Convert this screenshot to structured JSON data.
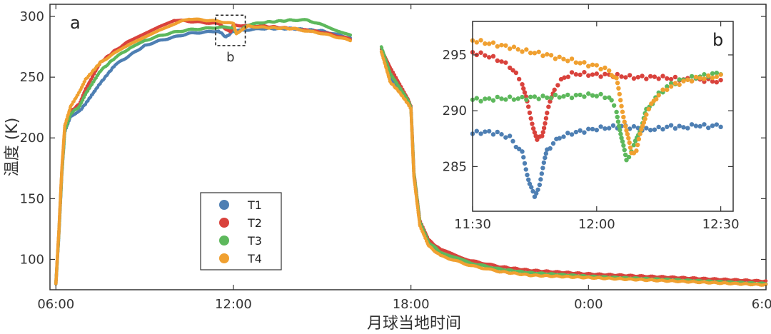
{
  "chart_data": [
    {
      "panel": "a",
      "type": "scatter",
      "title": "",
      "xlabel": "月球当地时间",
      "ylabel": "温度 (K)",
      "xlim": [
        5.8,
        30.0
      ],
      "ylim": [
        75,
        310
      ],
      "xticks": [
        {
          "value": 6,
          "label": "06:00"
        },
        {
          "value": 12,
          "label": "12:00"
        },
        {
          "value": 18,
          "label": "18:00"
        },
        {
          "value": 24,
          "label": "0:00"
        },
        {
          "value": 30,
          "label": "6:00"
        }
      ],
      "yticks": [
        100,
        150,
        200,
        250,
        300
      ],
      "grid": false,
      "legend": {
        "placement": "lower-center-left",
        "entries": [
          "T1",
          "T2",
          "T3",
          "T4"
        ]
      },
      "inset_box_label": "b",
      "inset_box": {
        "x": [
          11.4,
          12.4
        ],
        "y": [
          276,
          301
        ]
      },
      "series": [
        {
          "name": "T1",
          "color": "#4e7fb3",
          "x": [
            6.0,
            6.1,
            6.2,
            6.3,
            6.5,
            6.8,
            7.0,
            7.5,
            8.0,
            8.5,
            9.0,
            9.5,
            10.0,
            10.5,
            11.0,
            11.5,
            11.75,
            12.0,
            12.5,
            13.0,
            14.0,
            15.0,
            16.0,
            17.0,
            17.3,
            17.6,
            17.9,
            18.0,
            18.1,
            18.3,
            18.6,
            19.0,
            20.0,
            21.0,
            22.0,
            24.0,
            26.0,
            28.0,
            30.0
          ],
          "y": [
            80,
            120,
            170,
            205,
            218,
            222,
            228,
            245,
            260,
            268,
            276,
            280,
            283,
            286,
            287,
            288,
            283,
            288,
            289,
            290,
            290,
            288,
            282,
            271,
            249,
            240,
            230,
            225,
            170,
            130,
            113,
            105,
            97,
            92,
            89,
            86,
            84,
            82,
            80
          ]
        },
        {
          "name": "T2",
          "color": "#d9423c",
          "x": [
            6.0,
            6.1,
            6.2,
            6.3,
            6.5,
            6.8,
            7.0,
            7.5,
            8.0,
            8.5,
            9.0,
            9.5,
            10.0,
            10.5,
            11.0,
            11.5,
            11.9,
            12.0,
            12.5,
            13.0,
            14.0,
            15.0,
            16.0,
            17.0,
            17.3,
            17.6,
            17.9,
            18.0,
            18.1,
            18.3,
            18.6,
            19.0,
            20.0,
            21.0,
            22.0,
            24.0,
            26.0,
            28.0,
            30.0
          ],
          "y": [
            80,
            122,
            172,
            208,
            222,
            228,
            240,
            262,
            272,
            280,
            286,
            292,
            297,
            296,
            295,
            294,
            287,
            293,
            292,
            292,
            290,
            287,
            281,
            273,
            258,
            245,
            232,
            226,
            172,
            132,
            116,
            108,
            99,
            94,
            91,
            88,
            86,
            84,
            82
          ]
        },
        {
          "name": "T3",
          "color": "#5db85c",
          "x": [
            6.0,
            6.1,
            6.2,
            6.3,
            6.5,
            6.8,
            7.0,
            7.5,
            8.0,
            8.5,
            9.0,
            9.5,
            10.0,
            10.5,
            11.0,
            11.5,
            12.0,
            12.1,
            12.5,
            13.0,
            14.0,
            14.5,
            15.0,
            16.0,
            17.0,
            17.3,
            17.6,
            17.9,
            18.0,
            18.1,
            18.3,
            18.6,
            19.0,
            20.0,
            21.0,
            22.0,
            24.0,
            26.0,
            28.0,
            30.0
          ],
          "y": [
            80,
            121,
            171,
            206,
            220,
            226,
            236,
            255,
            266,
            274,
            280,
            284,
            287,
            289,
            290,
            291,
            291,
            286,
            293,
            295,
            297,
            297,
            293,
            284,
            275,
            253,
            242,
            231,
            225,
            171,
            131,
            114,
            106,
            97,
            92,
            89,
            86,
            84,
            82,
            80
          ]
        },
        {
          "name": "T4",
          "color": "#f0a030",
          "x": [
            6.0,
            6.1,
            6.2,
            6.3,
            6.5,
            6.8,
            7.0,
            7.5,
            8.0,
            8.5,
            9.0,
            9.5,
            10.0,
            10.5,
            11.0,
            11.5,
            12.0,
            12.1,
            12.5,
            13.0,
            14.0,
            15.0,
            16.0,
            17.0,
            17.3,
            17.6,
            17.9,
            18.0,
            18.1,
            18.3,
            18.6,
            19.0,
            20.0,
            21.0,
            22.0,
            24.0,
            26.0,
            28.0,
            30.0
          ],
          "y": [
            80,
            123,
            174,
            210,
            226,
            238,
            248,
            262,
            270,
            277,
            283,
            289,
            294,
            298,
            297,
            296,
            294,
            286,
            292,
            291,
            290,
            286,
            280,
            271,
            246,
            238,
            228,
            224,
            168,
            128,
            111,
            103,
            95,
            90,
            87,
            85,
            83,
            81,
            79
          ]
        }
      ]
    },
    {
      "panel": "b",
      "type": "scatter",
      "title": "",
      "xlabel": "",
      "ylabel": "",
      "xlim": [
        11.5,
        12.55
      ],
      "ylim": [
        281,
        298
      ],
      "xticks": [
        {
          "value": 11.5,
          "label": "11:30"
        },
        {
          "value": 12.0,
          "label": "12:00"
        },
        {
          "value": 12.5,
          "label": "12:30"
        }
      ],
      "yticks": [
        285,
        290,
        295
      ],
      "grid": false,
      "series": [
        {
          "name": "T1",
          "color": "#4e7fb3",
          "x": [
            11.5,
            11.55,
            11.6,
            11.65,
            11.7,
            11.73,
            11.75,
            11.77,
            11.8,
            11.85,
            11.9,
            11.95,
            12.0,
            12.05,
            12.1,
            12.15,
            12.2,
            12.25,
            12.3,
            12.35,
            12.4,
            12.45,
            12.5
          ],
          "y": [
            288.0,
            288.1,
            288.0,
            287.6,
            286.2,
            283.5,
            282.2,
            283.5,
            286.5,
            287.6,
            288.0,
            288.2,
            288.4,
            288.5,
            288.6,
            288.5,
            288.3,
            288.4,
            288.6,
            288.5,
            288.7,
            288.6,
            288.7
          ]
        },
        {
          "name": "T2",
          "color": "#d9423c",
          "x": [
            11.5,
            11.55,
            11.6,
            11.65,
            11.7,
            11.73,
            11.76,
            11.78,
            11.8,
            11.83,
            11.87,
            11.9,
            11.95,
            12.0,
            12.05,
            12.1,
            12.15,
            12.2,
            12.25,
            12.3,
            12.35,
            12.4,
            12.45,
            12.5
          ],
          "y": [
            295.2,
            295.0,
            294.6,
            294.0,
            292.5,
            289.8,
            287.3,
            287.8,
            289.8,
            292.0,
            293.0,
            293.3,
            293.3,
            293.2,
            293.2,
            293.1,
            293.0,
            293.0,
            293.0,
            292.9,
            292.8,
            292.8,
            292.7,
            292.6
          ]
        },
        {
          "name": "T3",
          "color": "#5db85c",
          "x": [
            11.5,
            11.55,
            11.6,
            11.65,
            11.7,
            11.75,
            11.8,
            11.85,
            11.9,
            11.95,
            12.0,
            12.05,
            12.08,
            12.1,
            12.12,
            12.15,
            12.18,
            12.2,
            12.25,
            12.3,
            12.35,
            12.4,
            12.45,
            12.5
          ],
          "y": [
            291.0,
            291.0,
            291.1,
            291.1,
            291.1,
            291.2,
            291.2,
            291.3,
            291.3,
            291.4,
            291.4,
            291.2,
            290.0,
            287.5,
            285.6,
            286.8,
            288.6,
            290.0,
            291.5,
            292.4,
            292.8,
            293.0,
            293.2,
            293.4
          ]
        },
        {
          "name": "T4",
          "color": "#f0a030",
          "x": [
            11.5,
            11.55,
            11.6,
            11.65,
            11.7,
            11.75,
            11.8,
            11.85,
            11.9,
            11.95,
            12.0,
            12.05,
            12.08,
            12.1,
            12.12,
            12.14,
            12.16,
            12.18,
            12.2,
            12.25,
            12.3,
            12.35,
            12.4,
            12.45,
            12.5
          ],
          "y": [
            296.3,
            296.1,
            295.9,
            295.7,
            295.4,
            295.2,
            295.0,
            294.7,
            294.5,
            294.2,
            294.0,
            293.6,
            292.8,
            290.5,
            288.2,
            286.2,
            286.5,
            288.2,
            289.8,
            291.5,
            292.2,
            292.6,
            292.9,
            293.0,
            293.1
          ]
        }
      ]
    }
  ]
}
